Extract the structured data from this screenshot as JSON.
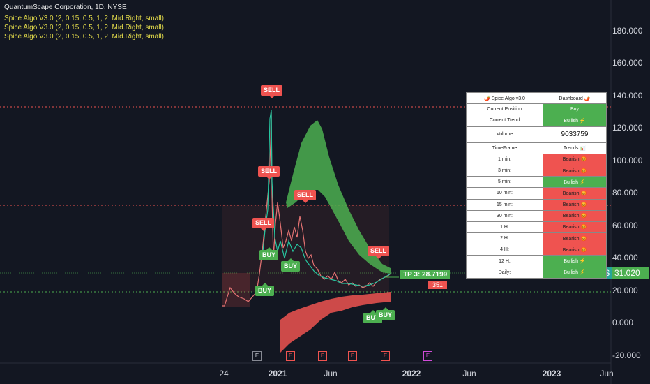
{
  "header": {
    "title": "QuantumScape Corporation, 1D, NYSE",
    "indicators": [
      "Spice Algo V3.0 (2, 0.15, 0.5, 1, 2, Mid.Right, small)",
      "Spice Algo V3.0 (2, 0.15, 0.5, 1, 2, Mid.Right, small)",
      "Spice Algo V3.0 (2, 0.15, 0.5, 1, 2, Mid.Right, small)"
    ]
  },
  "y_axis": [
    "180.000",
    "160.000",
    "140.000",
    "120.000",
    "100.000",
    "80.000",
    "60.000",
    "40.000",
    "20.000",
    "0.000",
    "-20.000"
  ],
  "x_axis": [
    {
      "label": "24",
      "bold": false
    },
    {
      "label": "2021",
      "bold": true
    },
    {
      "label": "Jun",
      "bold": false
    },
    {
      "label": "2022",
      "bold": true
    },
    {
      "label": "Jun",
      "bold": false
    },
    {
      "label": "2023",
      "bold": true
    },
    {
      "label": "Jun",
      "bold": false
    }
  ],
  "signals": [
    {
      "label": "SELL",
      "type": "sell"
    },
    {
      "label": "SELL",
      "type": "sell"
    },
    {
      "label": "SELL",
      "type": "sell"
    },
    {
      "label": "SELL",
      "type": "sell"
    },
    {
      "label": "SELL",
      "type": "sell"
    },
    {
      "label": "BUY",
      "type": "buy"
    },
    {
      "label": "BUY",
      "type": "buy"
    },
    {
      "label": "BUY",
      "type": "buy"
    },
    {
      "label": "BUY",
      "type": "buy"
    },
    {
      "label": "BUY",
      "type": "buy"
    }
  ],
  "tp_label": "TP 3: 28.7199",
  "tp_partial": "351",
  "price_ticker": "QS",
  "price_value": "31.020",
  "events": [
    "E",
    "E",
    "E",
    "E",
    "E",
    "E"
  ],
  "dashboard": {
    "title": "🌶️ Spice Algo v3.0",
    "title_right": "Dashboard 🌶️",
    "rows": [
      {
        "label": "Current Position",
        "value": "Buy",
        "state": "bull"
      },
      {
        "label": "Current Trend",
        "value": "Bullish ⚡",
        "state": "bull"
      },
      {
        "label": "Volume",
        "value": "9033759",
        "state": "vol"
      },
      {
        "label": "TimeFrame",
        "value": "Trends 📊",
        "state": "plain"
      },
      {
        "label": "1 min:",
        "value": "Bearish 😡",
        "state": "bear"
      },
      {
        "label": "3 min:",
        "value": "Bearish 😡",
        "state": "bear"
      },
      {
        "label": "5 min:",
        "value": "Bullish ⚡",
        "state": "bull"
      },
      {
        "label": "10 min:",
        "value": "Bearish 😡",
        "state": "bear"
      },
      {
        "label": "15 min:",
        "value": "Bearish 😡",
        "state": "bear"
      },
      {
        "label": "30 min:",
        "value": "Bearish 😡",
        "state": "bear"
      },
      {
        "label": "1 H:",
        "value": "Bearish 😡",
        "state": "bear"
      },
      {
        "label": "2 H:",
        "value": "Bearish 😡",
        "state": "bear"
      },
      {
        "label": "4 H:",
        "value": "Bearish 😡",
        "state": "bear"
      },
      {
        "label": "12 H:",
        "value": "Bullish ⚡",
        "state": "bull"
      },
      {
        "label": "Daily:",
        "value": "Bullish ⚡",
        "state": "bull"
      }
    ]
  },
  "colors": {
    "background": "#131722",
    "bull": "#4caf50",
    "bear": "#ef5350",
    "grid": "#2a2e39",
    "indicator_text": "#e0d84a"
  }
}
